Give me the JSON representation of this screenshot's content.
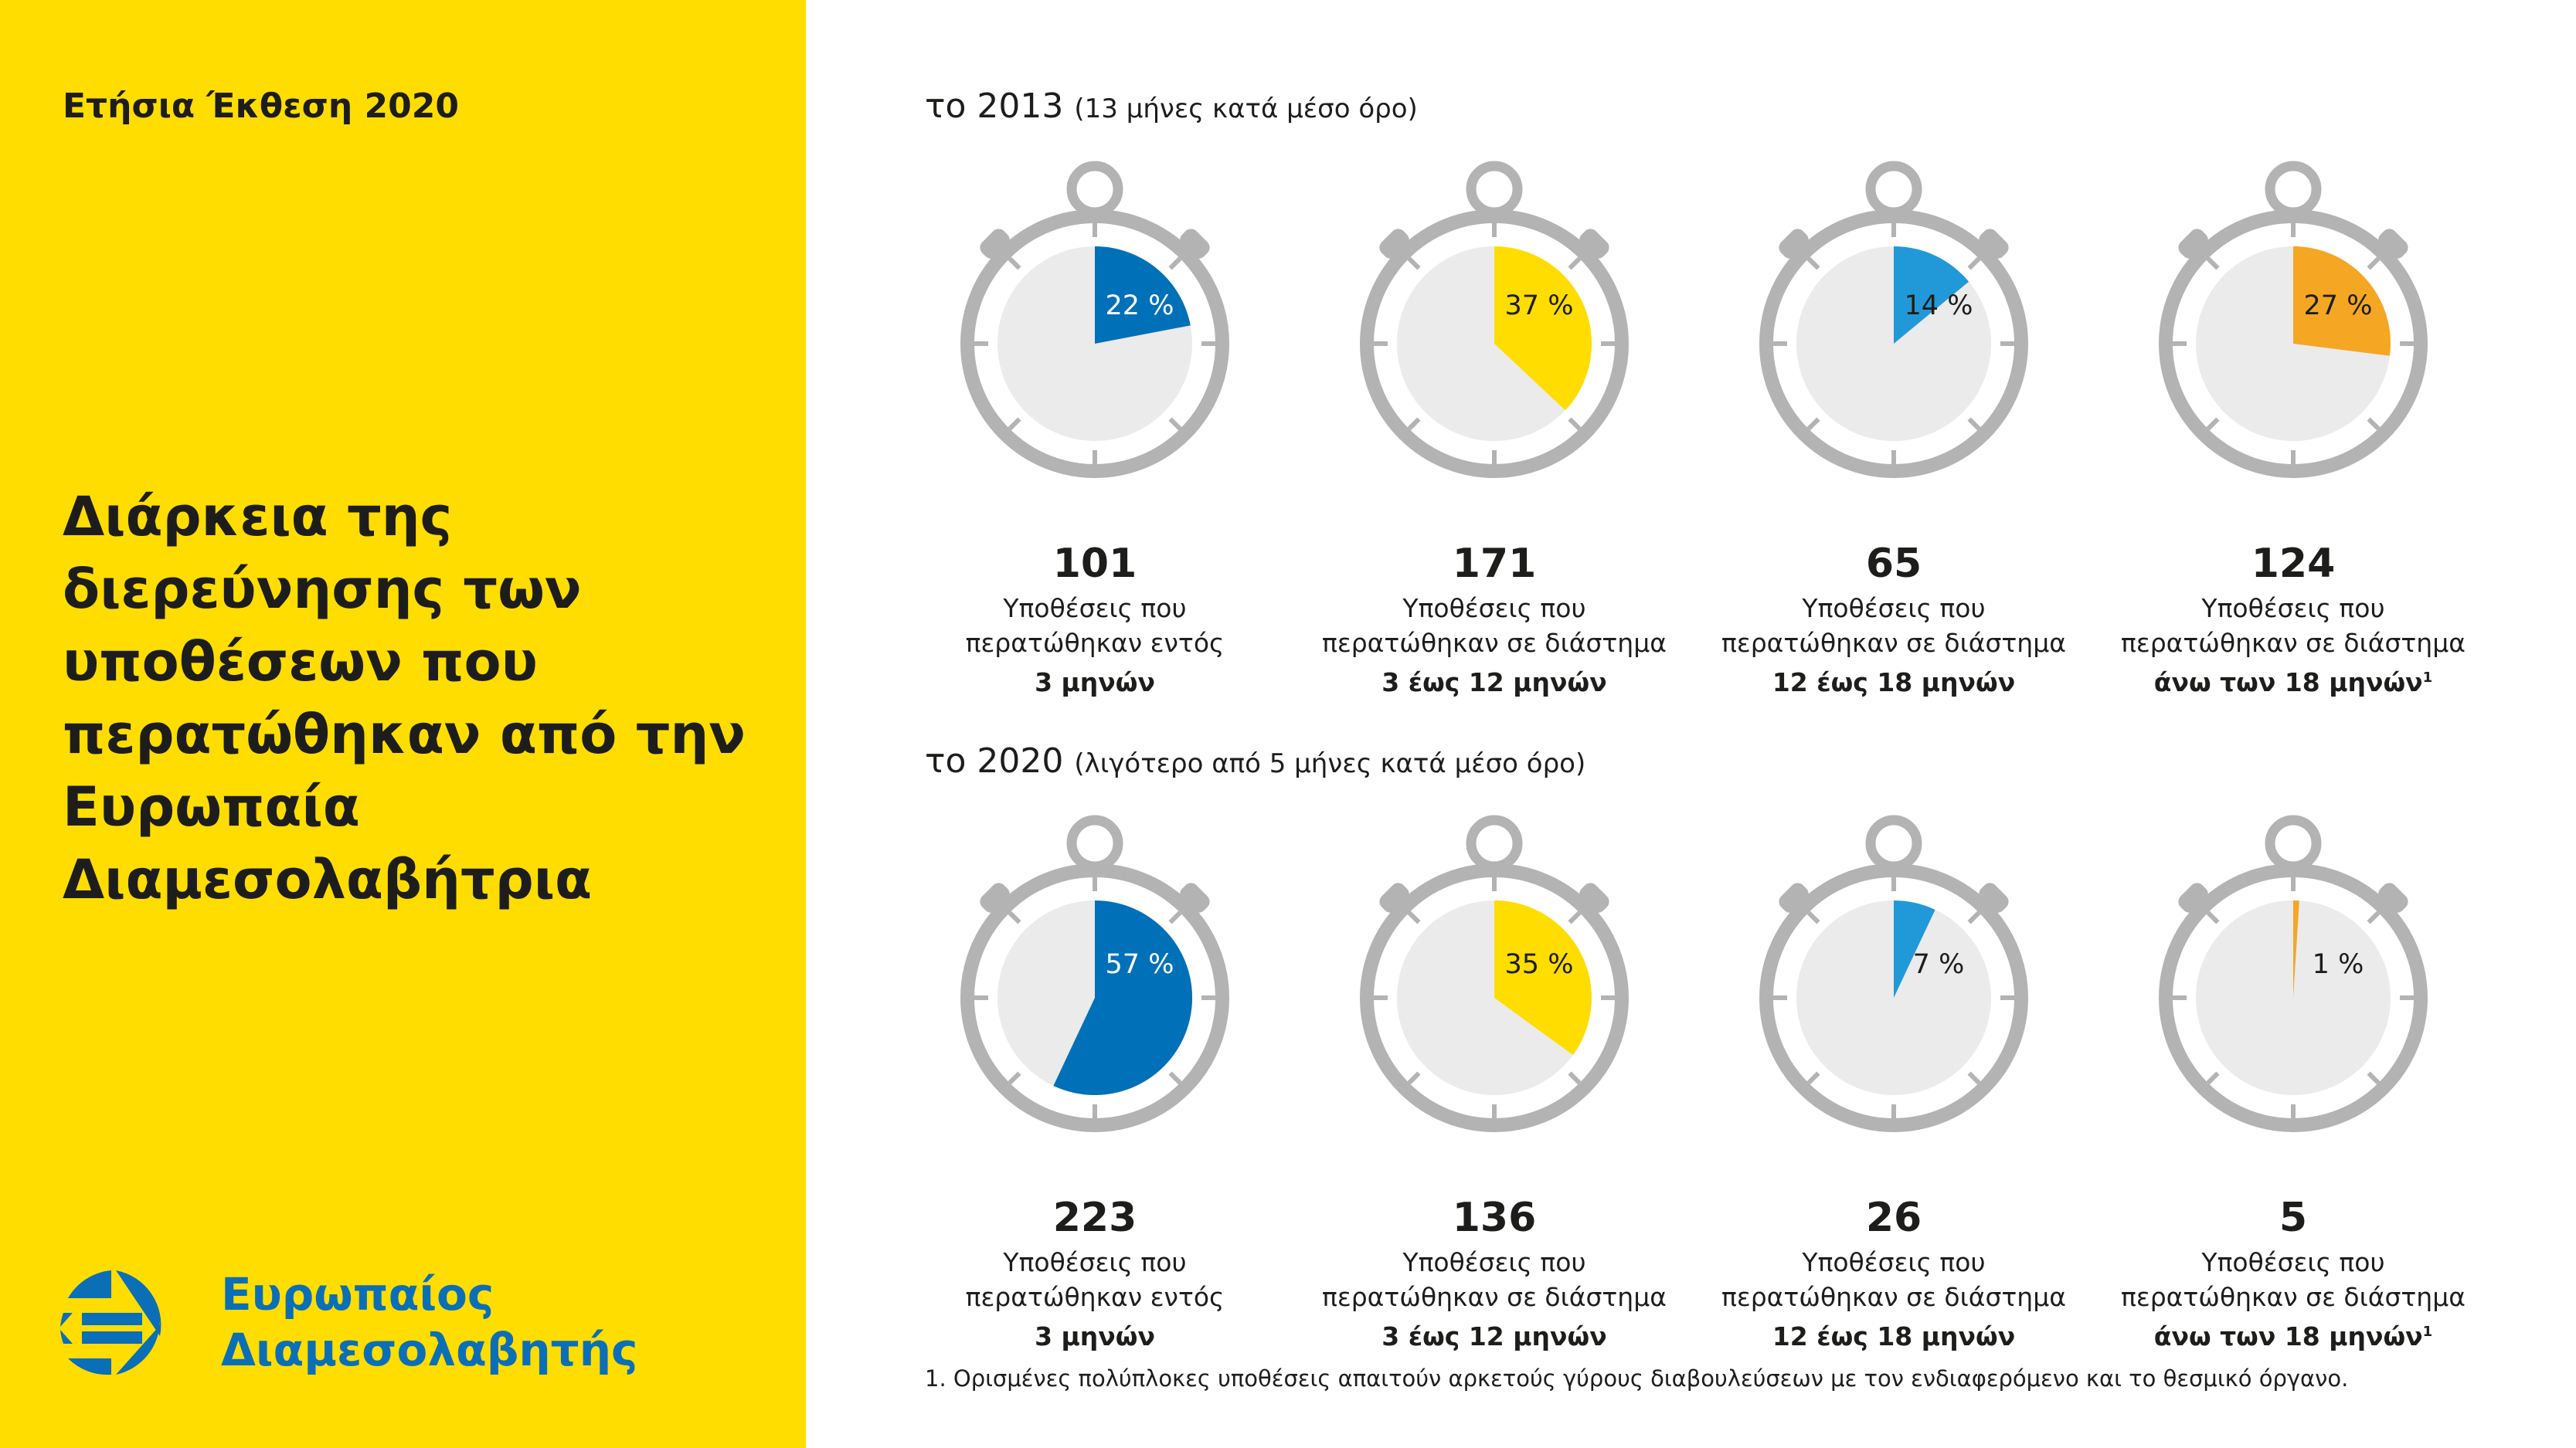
{
  "report_title": "Ετήσια Έκθεση 2020",
  "heading": "Διάρκεια της διερεύνησης των υποθέσεων που περατώθηκαν από την Ευρωπαία Διαμεσολαβήτρια",
  "logo": {
    "line1": "Ευρωπαίος",
    "line2": "Διαμεσολαβητής"
  },
  "colors": {
    "background_left": "#ffdd00",
    "blue": "#0070b8",
    "yellow": "#ffdd00",
    "light_blue": "#2199d8",
    "orange": "#f5a623",
    "ring": "#b3b3b3",
    "face": "#ebebeb"
  },
  "sections": [
    {
      "year": "το 2013",
      "note": "(13 μήνες κατά μέσο όρο)",
      "items": [
        {
          "percent": 22,
          "percent_label": "22 %",
          "count": "101",
          "line1": "Υποθέσεις που",
          "line2": "περατώθηκαν εντός",
          "line3": "3 μηνών",
          "sup": "",
          "color": "#0070b8",
          "text_color": "#ffffff"
        },
        {
          "percent": 37,
          "percent_label": "37 %",
          "count": "171",
          "line1": "Υποθέσεις που",
          "line2": "περατώθηκαν σε διάστημα",
          "line3": "3 έως 12 μηνών",
          "sup": "",
          "color": "#ffdd00",
          "text_color": "#1d1d1b"
        },
        {
          "percent": 14,
          "percent_label": "14 %",
          "count": "65",
          "line1": "Υποθέσεις που",
          "line2": "περατώθηκαν σε διάστημα",
          "line3": "12 έως 18 μηνών",
          "sup": "",
          "color": "#2199d8",
          "text_color": "#1d1d1b"
        },
        {
          "percent": 27,
          "percent_label": "27 %",
          "count": "124",
          "line1": "Υποθέσεις που",
          "line2": "περατώθηκαν σε διάστημα",
          "line3": "άνω των 18 μηνών",
          "sup": "1",
          "color": "#f5a623",
          "text_color": "#1d1d1b"
        }
      ]
    },
    {
      "year": "το 2020",
      "note": "(λιγότερο από 5 μήνες κατά μέσο όρο)",
      "items": [
        {
          "percent": 57,
          "percent_label": "57 %",
          "count": "223",
          "line1": "Υποθέσεις που",
          "line2": "περατώθηκαν εντός",
          "line3": "3 μηνών",
          "sup": "",
          "color": "#0070b8",
          "text_color": "#ffffff"
        },
        {
          "percent": 35,
          "percent_label": "35 %",
          "count": "136",
          "line1": "Υποθέσεις που",
          "line2": "περατώθηκαν σε διάστημα",
          "line3": "3 έως 12 μηνών",
          "sup": "",
          "color": "#ffdd00",
          "text_color": "#1d1d1b"
        },
        {
          "percent": 7,
          "percent_label": "7 %",
          "count": "26",
          "line1": "Υποθέσεις που",
          "line2": "περατώθηκαν σε διάστημα",
          "line3": "12 έως 18 μηνών",
          "sup": "",
          "color": "#2199d8",
          "text_color": "#1d1d1b"
        },
        {
          "percent": 1,
          "percent_label": "1 %",
          "count": "5",
          "line1": "Υποθέσεις που",
          "line2": "περατώθηκαν σε διάστημα",
          "line3": "άνω των 18 μηνών",
          "sup": "1",
          "color": "#f5a623",
          "text_color": "#1d1d1b"
        }
      ]
    }
  ],
  "footnote": "1. Ορισμένες πολύπλοκες υποθέσεις απαιτούν αρκετούς γύρους διαβουλεύσεων με τον ενδιαφερόμενο και το θεσμικό όργανο."
}
